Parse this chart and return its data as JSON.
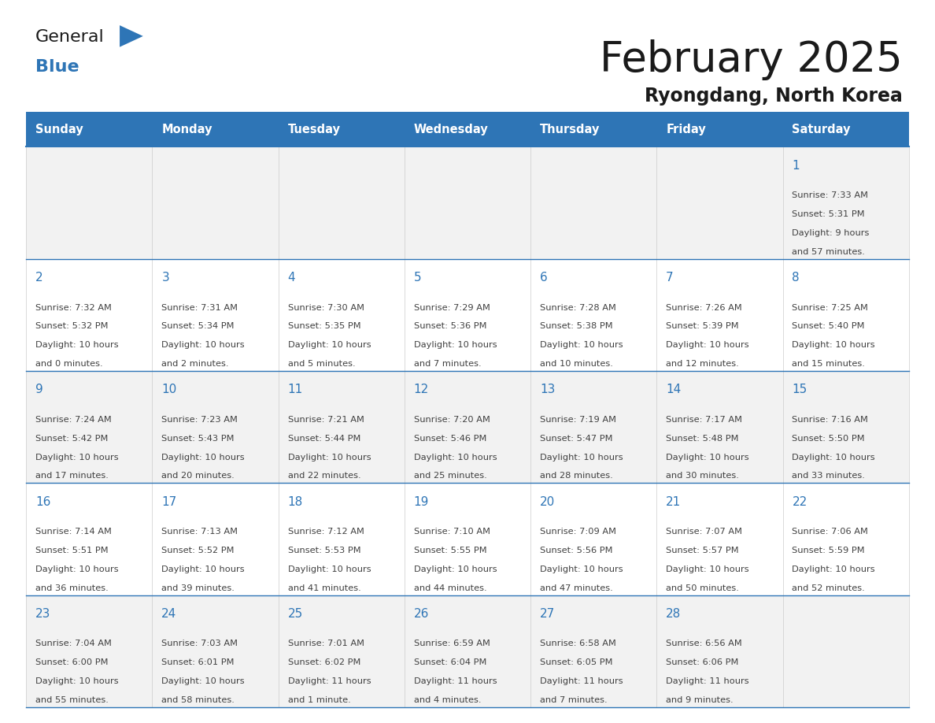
{
  "title": "February 2025",
  "subtitle": "Ryongdang, North Korea",
  "header_bg": "#2E75B6",
  "header_text_color": "#FFFFFF",
  "cell_border_color": "#2E75B6",
  "day_number_color": "#2E75B6",
  "info_text_color": "#404040",
  "background_color": "#FFFFFF",
  "alt_row_bg": "#F2F2F2",
  "days_of_week": [
    "Sunday",
    "Monday",
    "Tuesday",
    "Wednesday",
    "Thursday",
    "Friday",
    "Saturday"
  ],
  "calendar_data": [
    [
      null,
      null,
      null,
      null,
      null,
      null,
      {
        "day": 1,
        "sunrise": "7:33 AM",
        "sunset": "5:31 PM",
        "daylight": "9 hours and 57 minutes."
      }
    ],
    [
      {
        "day": 2,
        "sunrise": "7:32 AM",
        "sunset": "5:32 PM",
        "daylight": "10 hours and 0 minutes."
      },
      {
        "day": 3,
        "sunrise": "7:31 AM",
        "sunset": "5:34 PM",
        "daylight": "10 hours and 2 minutes."
      },
      {
        "day": 4,
        "sunrise": "7:30 AM",
        "sunset": "5:35 PM",
        "daylight": "10 hours and 5 minutes."
      },
      {
        "day": 5,
        "sunrise": "7:29 AM",
        "sunset": "5:36 PM",
        "daylight": "10 hours and 7 minutes."
      },
      {
        "day": 6,
        "sunrise": "7:28 AM",
        "sunset": "5:38 PM",
        "daylight": "10 hours and 10 minutes."
      },
      {
        "day": 7,
        "sunrise": "7:26 AM",
        "sunset": "5:39 PM",
        "daylight": "10 hours and 12 minutes."
      },
      {
        "day": 8,
        "sunrise": "7:25 AM",
        "sunset": "5:40 PM",
        "daylight": "10 hours and 15 minutes."
      }
    ],
    [
      {
        "day": 9,
        "sunrise": "7:24 AM",
        "sunset": "5:42 PM",
        "daylight": "10 hours and 17 minutes."
      },
      {
        "day": 10,
        "sunrise": "7:23 AM",
        "sunset": "5:43 PM",
        "daylight": "10 hours and 20 minutes."
      },
      {
        "day": 11,
        "sunrise": "7:21 AM",
        "sunset": "5:44 PM",
        "daylight": "10 hours and 22 minutes."
      },
      {
        "day": 12,
        "sunrise": "7:20 AM",
        "sunset": "5:46 PM",
        "daylight": "10 hours and 25 minutes."
      },
      {
        "day": 13,
        "sunrise": "7:19 AM",
        "sunset": "5:47 PM",
        "daylight": "10 hours and 28 minutes."
      },
      {
        "day": 14,
        "sunrise": "7:17 AM",
        "sunset": "5:48 PM",
        "daylight": "10 hours and 30 minutes."
      },
      {
        "day": 15,
        "sunrise": "7:16 AM",
        "sunset": "5:50 PM",
        "daylight": "10 hours and 33 minutes."
      }
    ],
    [
      {
        "day": 16,
        "sunrise": "7:14 AM",
        "sunset": "5:51 PM",
        "daylight": "10 hours and 36 minutes."
      },
      {
        "day": 17,
        "sunrise": "7:13 AM",
        "sunset": "5:52 PM",
        "daylight": "10 hours and 39 minutes."
      },
      {
        "day": 18,
        "sunrise": "7:12 AM",
        "sunset": "5:53 PM",
        "daylight": "10 hours and 41 minutes."
      },
      {
        "day": 19,
        "sunrise": "7:10 AM",
        "sunset": "5:55 PM",
        "daylight": "10 hours and 44 minutes."
      },
      {
        "day": 20,
        "sunrise": "7:09 AM",
        "sunset": "5:56 PM",
        "daylight": "10 hours and 47 minutes."
      },
      {
        "day": 21,
        "sunrise": "7:07 AM",
        "sunset": "5:57 PM",
        "daylight": "10 hours and 50 minutes."
      },
      {
        "day": 22,
        "sunrise": "7:06 AM",
        "sunset": "5:59 PM",
        "daylight": "10 hours and 52 minutes."
      }
    ],
    [
      {
        "day": 23,
        "sunrise": "7:04 AM",
        "sunset": "6:00 PM",
        "daylight": "10 hours and 55 minutes."
      },
      {
        "day": 24,
        "sunrise": "7:03 AM",
        "sunset": "6:01 PM",
        "daylight": "10 hours and 58 minutes."
      },
      {
        "day": 25,
        "sunrise": "7:01 AM",
        "sunset": "6:02 PM",
        "daylight": "11 hours and 1 minute."
      },
      {
        "day": 26,
        "sunrise": "6:59 AM",
        "sunset": "6:04 PM",
        "daylight": "11 hours and 4 minutes."
      },
      {
        "day": 27,
        "sunrise": "6:58 AM",
        "sunset": "6:05 PM",
        "daylight": "11 hours and 7 minutes."
      },
      {
        "day": 28,
        "sunrise": "6:56 AM",
        "sunset": "6:06 PM",
        "daylight": "11 hours and 9 minutes."
      },
      null
    ]
  ],
  "logo_general_color": "#1a1a1a",
  "logo_blue_color": "#2E75B6",
  "logo_triangle_color": "#2E75B6",
  "title_color": "#1a1a1a",
  "subtitle_color": "#1a1a1a"
}
